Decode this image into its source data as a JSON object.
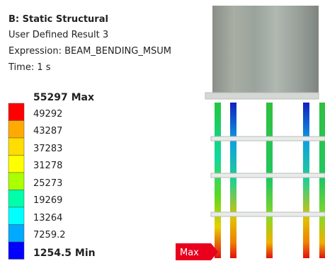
{
  "header": [
    "B: Static Structural",
    "User Defined Result 3",
    "Expression: BEAM_BENDING_MSUM",
    "Time: 1 s"
  ],
  "legend": {
    "labels": [
      "55297 Max",
      "49292",
      "43287",
      "37283",
      "31278",
      "25273",
      "19269",
      "13264",
      "7259.2",
      "1254.5 Min"
    ],
    "colors": [
      "#ff0000",
      "#ffaa00",
      "#ffdd00",
      "#ffff00",
      "#aaff00",
      "#00ffaa",
      "#00ffff",
      "#00aaff",
      "#0000ff"
    ]
  },
  "probe": {
    "max_tag": "Max"
  }
}
